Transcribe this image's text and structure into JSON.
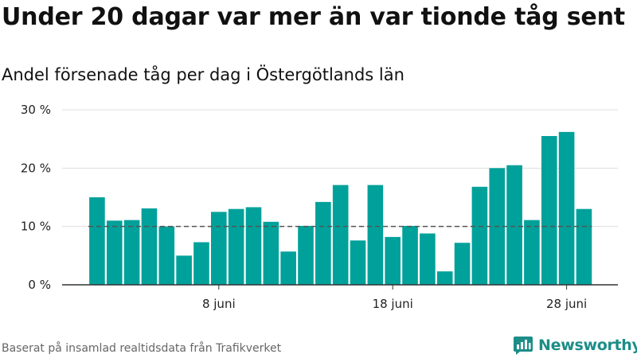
{
  "title": "Under 20 dagar var mer än var tionde tåg sent",
  "subtitle": "Andel försenade tåg per dag i Östergötlands län",
  "footer": "Baserat på insamlad realtidsdata från Trafikverket",
  "brand": {
    "name": "Newsworthy",
    "icon": "newsworthy-logo-icon",
    "color": "#1c8d87"
  },
  "chart_data": {
    "type": "bar",
    "x": [
      "2023-06-01",
      "2023-06-02",
      "2023-06-03",
      "2023-06-04",
      "2023-06-05",
      "2023-06-06",
      "2023-06-07",
      "2023-06-08",
      "2023-06-09",
      "2023-06-10",
      "2023-06-11",
      "2023-06-12",
      "2023-06-13",
      "2023-06-14",
      "2023-06-15",
      "2023-06-16",
      "2023-06-17",
      "2023-06-18",
      "2023-06-19",
      "2023-06-20",
      "2023-06-21",
      "2023-06-22",
      "2023-06-23",
      "2023-06-24",
      "2023-06-25",
      "2023-06-26",
      "2023-06-27",
      "2023-06-28",
      "2023-06-29"
    ],
    "values": [
      15.0,
      11.0,
      11.1,
      13.1,
      10.0,
      5.0,
      7.3,
      12.5,
      13.0,
      13.3,
      10.8,
      5.7,
      10.1,
      14.2,
      17.1,
      7.6,
      17.1,
      8.2,
      10.1,
      8.8,
      2.3,
      7.2,
      16.8,
      20.0,
      20.5,
      11.1,
      25.5,
      26.2,
      13.0
    ],
    "ylim": [
      0,
      30
    ],
    "yticks": [
      0,
      10,
      20,
      30
    ],
    "ytick_labels": [
      "0 %",
      "10 %",
      "20 %",
      "30 %"
    ],
    "xticks": [
      "2023-06-08",
      "2023-06-18",
      "2023-06-28"
    ],
    "xtick_labels": [
      "8 juni",
      "18 juni",
      "28 juni"
    ],
    "reference_line": 10,
    "grid": true,
    "colors": {
      "bar": "#00a19a",
      "grid": "#dddddd",
      "axis": "#333333",
      "reference": "#555555"
    }
  }
}
